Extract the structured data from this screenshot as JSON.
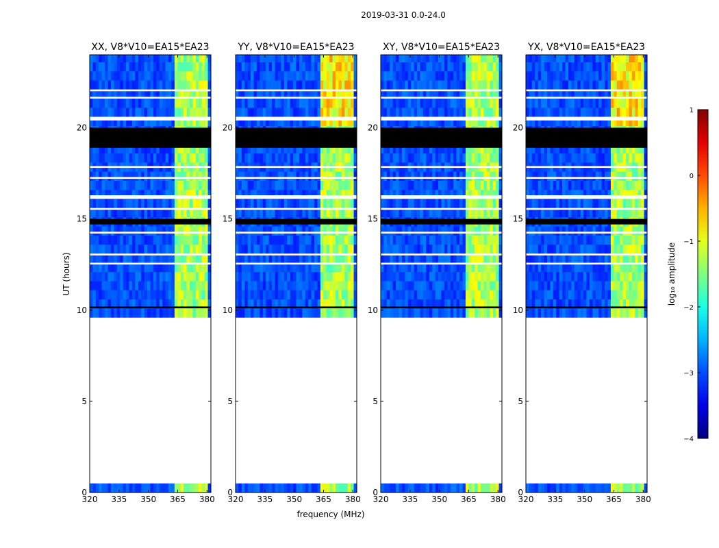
{
  "chart_data": {
    "type": "heatmap",
    "suptitle": "2019-03-31 0.0-24.0",
    "xlabel": "frequency (MHz)",
    "ylabel": "UT (hours)",
    "xlim": [
      320,
      382
    ],
    "ylim": [
      0,
      24
    ],
    "xticks": [
      320,
      335,
      350,
      365,
      380
    ],
    "yticks": [
      0,
      5,
      10,
      15,
      20
    ],
    "panels": [
      {
        "title": "XX, V8*V10=EA15*EA23",
        "pol": "XX"
      },
      {
        "title": "YY, V8*V10=EA15*EA23",
        "pol": "YY"
      },
      {
        "title": "XY, V8*V10=EA15*EA23",
        "pol": "XY"
      },
      {
        "title": "YX, V8*V10=EA15*EA23",
        "pol": "YX"
      }
    ],
    "colorbar": {
      "label": "log₁₀ amplitude",
      "min": -4,
      "max": 1,
      "ticks": [
        1,
        0,
        -1,
        -2,
        -3,
        -4
      ],
      "tick_labels": [
        "1",
        "0",
        "−1",
        "−2",
        "−3",
        "−4"
      ],
      "colormap": "jet"
    },
    "data_segments_ut": [
      [
        0.0,
        0.5
      ],
      [
        9.6,
        24.0
      ]
    ],
    "flagged_black_ut": [
      [
        18.9,
        20.0
      ],
      [
        14.7,
        15.0
      ],
      [
        10.1,
        10.2
      ]
    ],
    "gap_white_ut": [
      [
        16.1,
        16.3
      ],
      [
        17.2,
        17.3
      ],
      [
        17.8,
        17.9
      ],
      [
        12.5,
        12.6
      ],
      [
        13.0,
        13.1
      ],
      [
        21.6,
        21.7
      ],
      [
        20.4,
        20.6
      ],
      [
        22.0,
        22.1
      ],
      [
        15.5,
        15.6
      ],
      [
        14.2,
        14.3
      ]
    ],
    "signal_band_mhz": [
      363,
      381
    ],
    "background_log_amplitude": -3.0,
    "signal_log_amplitude": -1.3
  }
}
